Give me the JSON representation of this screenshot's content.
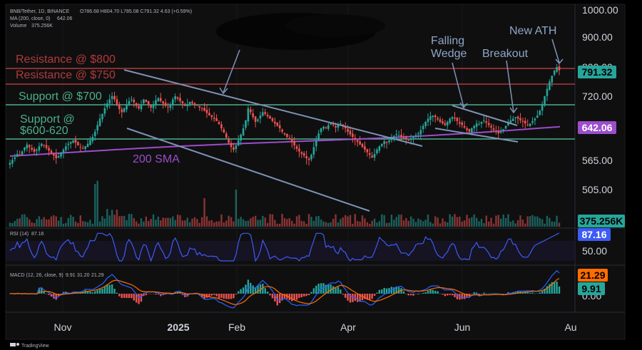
{
  "header": {
    "symbol": "BNB/Tether, 1D, BINANCE",
    "ohlc": "O786.68 H804.70 L785.08 C791.32 4.63 (+0.59%)",
    "ma_label": "MA (200, close, 0)",
    "ma_value": "642.06",
    "volume_label": "Volume",
    "volume_value": "375.256K"
  },
  "annotations": {
    "res800": "Resistance @ $800",
    "res750": "Resistance @ $750",
    "sup700": "Support @ $700",
    "sup600_line1": "Support @",
    "sup600_line2": "$600-620",
    "sma": "200 SMA",
    "wedge_line1": "Falling",
    "wedge_line2": "Wedge",
    "breakout": "Breakout",
    "ath": "New ATH"
  },
  "badges": {
    "price": "791.32",
    "sma": "642.06",
    "volume": "375.256K",
    "rsi": "87.16",
    "macd_signal": "21.29",
    "macd_line": "9.91"
  },
  "rsi_panel": {
    "label": "RSI (14)",
    "value": "87.16"
  },
  "macd_panel": {
    "label": "MACD (12, 26, close, 9)",
    "v1": "9.91",
    "v2": "31.20",
    "v3": "21.29"
  },
  "footer": {
    "brand": "TradingView"
  },
  "colors": {
    "up": "#26a69a",
    "down": "#ef5350",
    "sma": "#9c4dcc",
    "support": "#4caf8a",
    "resistance": "#b03a3a",
    "wedge": "#7e93b5",
    "annotation": "#8fa6c6",
    "rsi": "#3d5cf5",
    "macd": "#2962ff",
    "signal": "#ff6d00"
  },
  "chart_data": {
    "type": "candlestick",
    "price_axis": {
      "ticks": [
        1000,
        900,
        800,
        720,
        640,
        565,
        505
      ],
      "labels": [
        "1000.00",
        "900.00",
        "800.00",
        "720.00",
        "640.00",
        "565.00",
        "505.00"
      ]
    },
    "time_axis": {
      "labels": [
        "Nov",
        "2025",
        "Feb",
        "Apr",
        "Jun",
        "Au"
      ]
    },
    "levels": {
      "resistance": [
        800,
        750
      ],
      "support": [
        700,
        610
      ]
    },
    "last_close": 791.32,
    "sma200_last": 642.06,
    "rsi_axis": {
      "labels": [
        "50.00"
      ]
    },
    "macd_axis": {
      "labels": [
        "0.00"
      ]
    },
    "closes": [
      560,
      566,
      572,
      580,
      578,
      586,
      595,
      602,
      596,
      590,
      585,
      590,
      598,
      604,
      600,
      594,
      588,
      582,
      576,
      570,
      575,
      582,
      590,
      598,
      604,
      608,
      612,
      606,
      600,
      596,
      592,
      598,
      604,
      612,
      620,
      632,
      648,
      664,
      676,
      690,
      702,
      712,
      720,
      712,
      700,
      688,
      680,
      690,
      700,
      708,
      712,
      705,
      696,
      690,
      700,
      712,
      706,
      698,
      692,
      700,
      710,
      715,
      708,
      702,
      696,
      692,
      700,
      712,
      720,
      714,
      708,
      702,
      696,
      700,
      706,
      702,
      698,
      696,
      692,
      688,
      684,
      678,
      672,
      668,
      664,
      658,
      650,
      640,
      630,
      618,
      606,
      596,
      590,
      600,
      612,
      625,
      640,
      660,
      690,
      680,
      668,
      656,
      662,
      672,
      680,
      676,
      670,
      664,
      658,
      652,
      646,
      640,
      632,
      626,
      620,
      614,
      608,
      600,
      592,
      586,
      580,
      576,
      570,
      566,
      578,
      596,
      612,
      628,
      640,
      644,
      640,
      648,
      652,
      648,
      642,
      648,
      652,
      646,
      640,
      632,
      626,
      620,
      614,
      608,
      602,
      596,
      590,
      584,
      578,
      572,
      580,
      590,
      598,
      604,
      610,
      606,
      612,
      618,
      622,
      626,
      624,
      620,
      618,
      614,
      612,
      616,
      620,
      624,
      628,
      636,
      646,
      656,
      664,
      670,
      672,
      668,
      662,
      656,
      652,
      648,
      656,
      664,
      668,
      664,
      658,
      652,
      648,
      642,
      636,
      632,
      640,
      646,
      652,
      650,
      656,
      660,
      654,
      648,
      642,
      636,
      632,
      628,
      632,
      638,
      646,
      654,
      660,
      664,
      668,
      664,
      660,
      656,
      652,
      648,
      652,
      658,
      664,
      672,
      684,
      700,
      720,
      740,
      760,
      776,
      790,
      800,
      791
    ]
  }
}
